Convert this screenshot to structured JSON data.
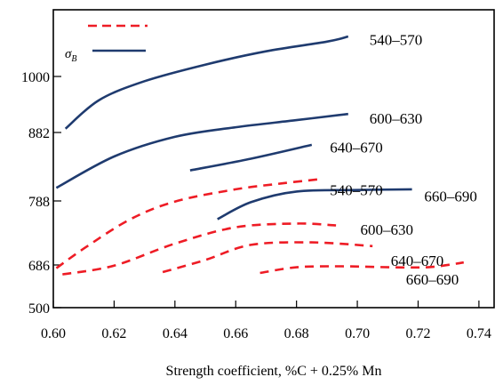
{
  "chart_data": {
    "type": "line",
    "xlabel": "Strength coefficient, %C + 0.25% Mn",
    "ylabel": "",
    "xlim": [
      0.6,
      0.745
    ],
    "x_ticks": [
      0.6,
      0.62,
      0.64,
      0.66,
      0.68,
      0.7,
      0.72,
      0.74
    ],
    "x_tick_labels": [
      "0.60",
      "0.62",
      "0.64",
      "0.66",
      "0.68",
      "0.70",
      "0.72",
      "0.74"
    ],
    "y_ticks": [
      {
        "value": 500,
        "label": "500"
      },
      {
        "value": 686,
        "label": "686"
      },
      {
        "value": 788,
        "label": "788"
      },
      {
        "value": 882,
        "label": "882"
      },
      {
        "value": 1000,
        "label": "1000"
      }
    ],
    "y_min": 500,
    "y_max": 1090,
    "legend": {
      "placement": "top-left",
      "entries": [
        {
          "label": "",
          "color": "#ee1c25",
          "dash": "dashed"
        },
        {
          "label": "σB",
          "color": "#1f3b6f",
          "dash": "solid"
        }
      ]
    },
    "series": [
      {
        "name": "540–570",
        "style": "solid",
        "color": "#1f3b6f",
        "points": [
          [
            0.604,
            890
          ],
          [
            0.615,
            950
          ],
          [
            0.63,
            990
          ],
          [
            0.65,
            1016
          ],
          [
            0.67,
            1034
          ],
          [
            0.69,
            1047
          ],
          [
            0.697,
            1054
          ]
        ]
      },
      {
        "name": "600–630",
        "style": "solid",
        "color": "#1f3b6f",
        "points": [
          [
            0.601,
            806
          ],
          [
            0.62,
            849
          ],
          [
            0.64,
            876
          ],
          [
            0.66,
            893
          ],
          [
            0.68,
            908
          ],
          [
            0.697,
            921
          ]
        ]
      },
      {
        "name": "640–670",
        "style": "solid",
        "color": "#1f3b6f",
        "points": [
          [
            0.645,
            830
          ],
          [
            0.665,
            846
          ],
          [
            0.685,
            865
          ]
        ]
      },
      {
        "name": "660–690",
        "style": "solid",
        "color": "#1f3b6f",
        "points": [
          [
            0.654,
            759
          ],
          [
            0.665,
            786
          ],
          [
            0.68,
            801
          ],
          [
            0.7,
            803
          ],
          [
            0.718,
            804
          ]
        ]
      },
      {
        "name": "540–570",
        "style": "dashed",
        "color": "#ee1c25",
        "points": [
          [
            0.601,
            672
          ],
          [
            0.61,
            712
          ],
          [
            0.625,
            758
          ],
          [
            0.64,
            787
          ],
          [
            0.66,
            804
          ],
          [
            0.675,
            812
          ],
          [
            0.688,
            818
          ]
        ]
      },
      {
        "name": "600–630",
        "style": "dashed",
        "color": "#ee1c25",
        "points": [
          [
            0.603,
            645
          ],
          [
            0.62,
            683
          ],
          [
            0.64,
            720
          ],
          [
            0.66,
            746
          ],
          [
            0.68,
            752
          ],
          [
            0.693,
            749
          ]
        ]
      },
      {
        "name": "640–670",
        "style": "dashed",
        "color": "#ee1c25",
        "points": [
          [
            0.636,
            655
          ],
          [
            0.65,
            694
          ],
          [
            0.665,
            718
          ],
          [
            0.685,
            722
          ],
          [
            0.705,
            716
          ]
        ]
      },
      {
        "name": "660–690",
        "style": "dashed",
        "color": "#ee1c25",
        "points": [
          [
            0.668,
            651
          ],
          [
            0.68,
            676
          ],
          [
            0.695,
            680
          ],
          [
            0.715,
            675
          ],
          [
            0.725,
            678
          ],
          [
            0.735,
            690
          ]
        ]
      }
    ],
    "annotations": [
      {
        "text": "540–570",
        "x": 0.704,
        "y": 1050
      },
      {
        "text": "600–630",
        "x": 0.704,
        "y": 912
      },
      {
        "text": "640–670",
        "x": 0.691,
        "y": 862
      },
      {
        "text": "540–570",
        "x": 0.691,
        "y": 803
      },
      {
        "text": "660–690",
        "x": 0.722,
        "y": 795
      },
      {
        "text": "600–630",
        "x": 0.701,
        "y": 743
      },
      {
        "text": "640–670",
        "x": 0.711,
        "y": 693
      },
      {
        "text": "660–690",
        "x": 0.716,
        "y": 624
      }
    ]
  }
}
